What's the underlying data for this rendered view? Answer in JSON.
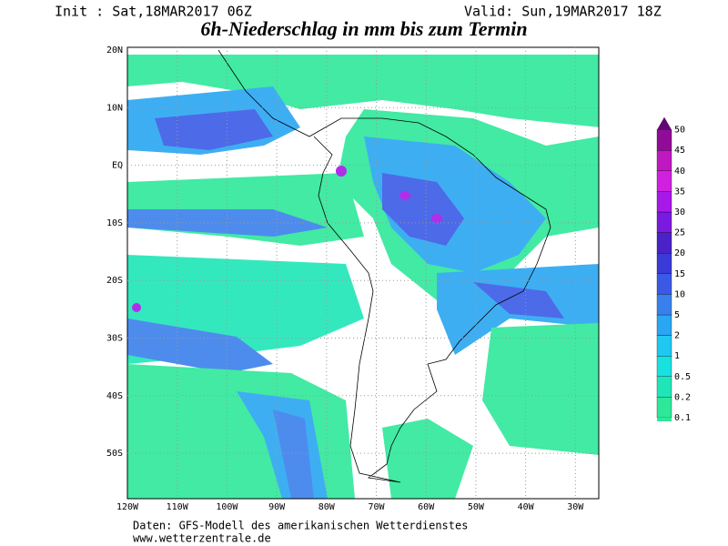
{
  "header": {
    "init": "Init : Sat,18MAR2017 06Z",
    "valid": "Valid: Sun,19MAR2017 18Z",
    "title": "6h-Niederschlag in mm bis zum Termin"
  },
  "map": {
    "lat_labels": [
      "20N",
      "10N",
      "EQ",
      "10S",
      "20S",
      "30S",
      "40S",
      "50S"
    ],
    "lon_labels": [
      "120W",
      "110W",
      "100W",
      "90W",
      "80W",
      "70W",
      "60W",
      "50W",
      "40W",
      "30W"
    ]
  },
  "colorbar": {
    "levels": [
      0.1,
      0.2,
      0.5,
      1,
      2,
      5,
      10,
      15,
      20,
      25,
      30,
      35,
      40,
      45,
      50
    ],
    "colors": [
      "#2ee89a",
      "#1fe6b8",
      "#18e2e0",
      "#1ec8f0",
      "#2aa6f2",
      "#3a80ec",
      "#3a5ae6",
      "#3a3ad8",
      "#4a22c8",
      "#7a1ae0",
      "#a818e8",
      "#d020e0",
      "#c018c0",
      "#900c98",
      "#600870"
    ]
  },
  "footer": {
    "line1": "Daten: GFS-Modell des amerikanischen Wetterdienstes",
    "line2": "www.wetterzentrale.de"
  }
}
